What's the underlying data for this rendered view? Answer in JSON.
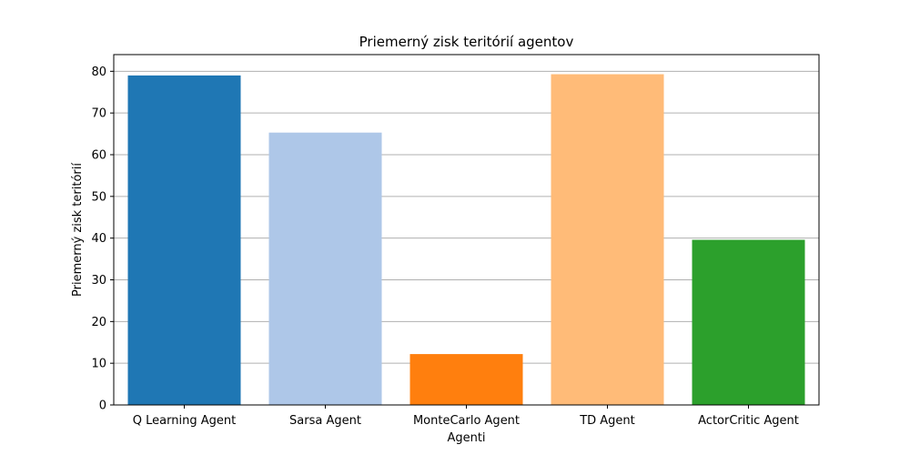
{
  "chart_data": {
    "type": "bar",
    "title": "Priemerný zisk teritórií agentov",
    "xlabel": "Agenti",
    "ylabel": "Priemerný zisk teritórií",
    "categories": [
      "Q Learning Agent",
      "Sarsa Agent",
      "MonteCarlo Agent",
      "TD Agent",
      "ActorCritic Agent"
    ],
    "values": [
      79,
      65.3,
      12.2,
      79.3,
      39.6
    ],
    "colors": [
      "#1f77b4",
      "#aec7e8",
      "#ff7f0e",
      "#ffbb78",
      "#2ca02c"
    ],
    "ylim": [
      0,
      84
    ],
    "yticks": [
      0,
      10,
      20,
      30,
      40,
      50,
      60,
      70,
      80
    ],
    "grid": {
      "axis": "y",
      "color": "#b0b0b0"
    },
    "legend": "none"
  }
}
